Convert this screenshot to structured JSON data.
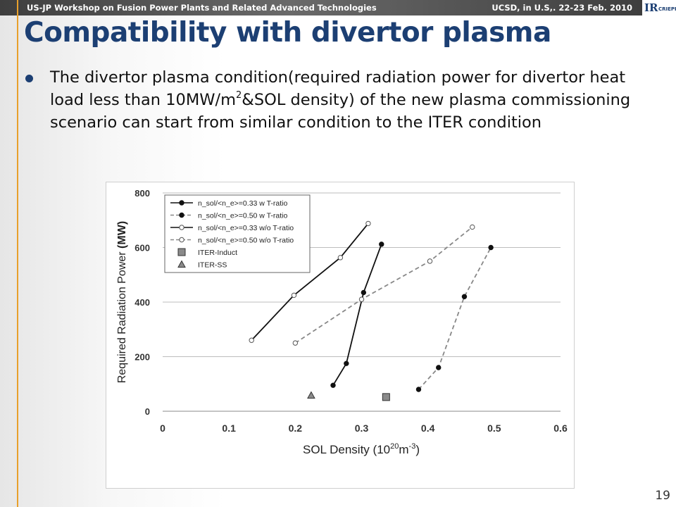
{
  "header": {
    "workshop": "US-JP Workshop on Fusion Power Plants and Related Advanced Technologies",
    "venue": "UCSD, in U.S,. 22-23 Feb. 2010",
    "logo_text": "IR CRIEPI"
  },
  "slide": {
    "title": "Compatibility with divertor plasma",
    "bullet": {
      "text_part1": "The divertor plasma condition(required radiation power for divertor heat load less than 10MW/m",
      "superscript": "2",
      "text_part2": "&SOL density) of the new plasma commissioning scenario can start from similar condition to the ITER condition"
    },
    "page_number": "19"
  },
  "colors": {
    "title": "#1c3f73",
    "accent_bar": "#e8a02c",
    "series_black": "#111111",
    "series_gray": "#7a7a7a"
  },
  "chart_data": {
    "type": "scatter",
    "xlabel": "SOL Density",
    "xunit_base": "(10",
    "xunit_exp": "20",
    "xunit_tail": "m",
    "xunit_exp2": "-3",
    "xunit_close": ")",
    "ylabel_part": "Required Radiation Power",
    "ylabel_bold": "(MW)",
    "xlim": [
      0,
      0.6
    ],
    "ylim": [
      0,
      800
    ],
    "xticks": [
      0,
      0.1,
      0.2,
      0.3,
      0.4,
      0.5,
      0.6
    ],
    "xtick_labels": [
      "0",
      "0.1",
      "0.2",
      "0.3",
      "0.4",
      "0.5",
      "0.6"
    ],
    "yticks": [
      0,
      200,
      400,
      600,
      800
    ],
    "ytick_labels": [
      "0",
      "200",
      "400",
      "600",
      "800"
    ],
    "grid": "horizontal",
    "legend_position": "top-left",
    "series": [
      {
        "name": "n_sol/<n_e>=0.33 w T-ratio",
        "line": "solid",
        "marker": "filled-circle",
        "color": "#111111",
        "x": [
          0.257,
          0.277,
          0.303,
          0.33
        ],
        "y": [
          95,
          175,
          435,
          612
        ]
      },
      {
        "name": "n_sol/<n_e>=0.50 w T-ratio",
        "line": "dashed",
        "marker": "filled-circle",
        "color": "#7a7a7a",
        "x": [
          0.386,
          0.416,
          0.455,
          0.495
        ],
        "y": [
          80,
          160,
          420,
          600
        ]
      },
      {
        "name": "n_sol/<n_e>=0.33 w/o T-ratio",
        "line": "solid",
        "marker": "open-circle",
        "color": "#111111",
        "x": [
          0.134,
          0.198,
          0.268,
          0.31
        ],
        "y": [
          260,
          425,
          563,
          688
        ]
      },
      {
        "name": "n_sol/<n_e>=0.50 w/o T-ratio",
        "line": "dashed",
        "marker": "open-circle",
        "color": "#7a7a7a",
        "x": [
          0.2,
          0.3,
          0.403,
          0.467
        ],
        "y": [
          250,
          410,
          550,
          675
        ]
      },
      {
        "name": "ITER-Induct",
        "line": "none",
        "marker": "square",
        "color": "#888888",
        "x": [
          0.337
        ],
        "y": [
          52
        ]
      },
      {
        "name": "ITER-SS",
        "line": "none",
        "marker": "triangle",
        "color": "#888888",
        "x": [
          0.224
        ],
        "y": [
          58
        ]
      }
    ]
  }
}
